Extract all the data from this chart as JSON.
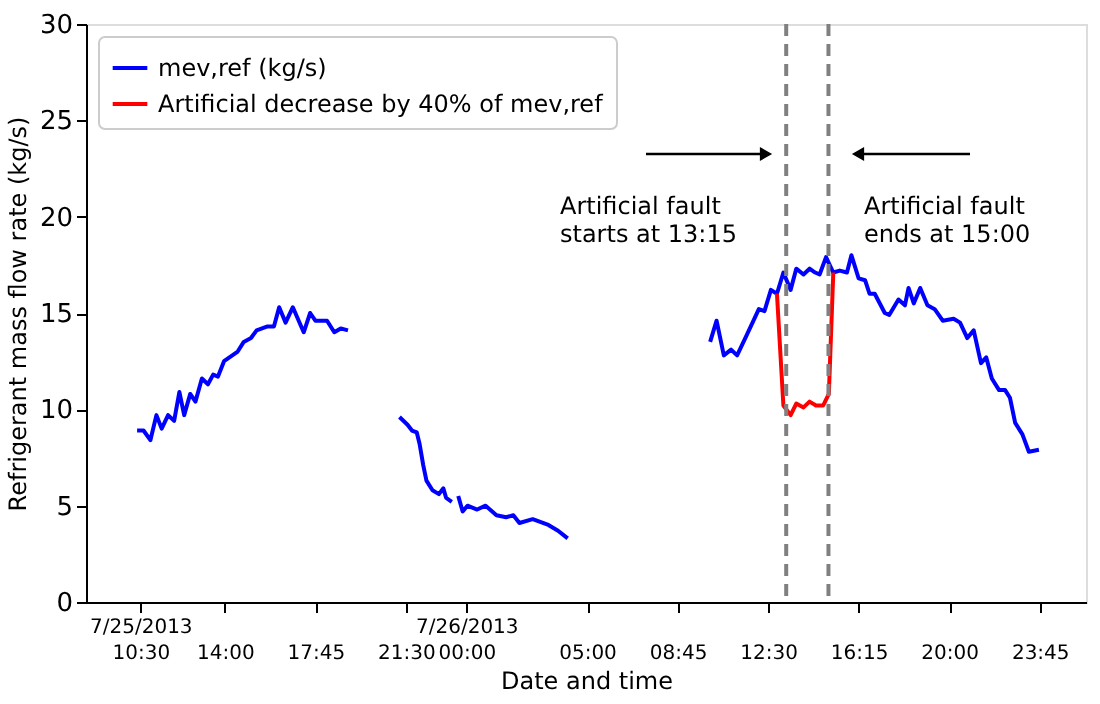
{
  "chart_data": {
    "type": "line",
    "xlabel": "Date and time",
    "ylabel": "Refrigerant mass flow rate (kg/s)",
    "xlim": [
      "2013-07-25T08:15",
      "2013-07-27T01:40"
    ],
    "ylim": [
      0,
      30
    ],
    "xticks": [
      {
        "value": "2013-07-25T10:30",
        "label": "7/25/2013\n10:30"
      },
      {
        "value": "2013-07-25T14:00",
        "label": "14:00"
      },
      {
        "value": "2013-07-25T17:45",
        "label": "17:45"
      },
      {
        "value": "2013-07-25T21:30",
        "label": "21:30"
      },
      {
        "value": "2013-07-26T00:00",
        "label": "7/26/2013\n00:00"
      },
      {
        "value": "2013-07-26T05:00",
        "label": "05:00"
      },
      {
        "value": "2013-07-26T08:45",
        "label": "08:45"
      },
      {
        "value": "2013-07-26T12:30",
        "label": "12:30"
      },
      {
        "value": "2013-07-26T16:15",
        "label": "16:15"
      },
      {
        "value": "2013-07-26T20:00",
        "label": "20:00"
      },
      {
        "value": "2013-07-26T23:45",
        "label": "23:45"
      }
    ],
    "yticks": [
      0,
      5,
      10,
      15,
      20,
      25,
      30
    ],
    "grid": false,
    "legend": "top left",
    "line_style": "solid",
    "marker": "none",
    "series": [
      {
        "name": "mev,ref (kg/s)",
        "color": "#0000ff",
        "x": [
          "2013-07-25T10:22",
          "2013-07-25T10:38",
          "2013-07-25T10:55",
          "2013-07-25T11:10",
          "2013-07-25T11:23",
          "2013-07-25T11:39",
          "2013-07-25T11:54",
          "2013-07-25T12:07",
          "2013-07-25T12:19",
          "2013-07-25T12:34",
          "2013-07-25T12:47",
          "2013-07-25T13:03",
          "2013-07-25T13:18",
          "2013-07-25T13:31",
          "2013-07-25T13:43",
          "2013-07-25T13:58",
          "2013-07-25T14:32",
          "2013-07-25T14:47",
          "2013-07-25T15:05",
          "2013-07-25T15:19",
          "2013-07-25T15:46",
          "2013-07-25T16:02",
          "2013-07-25T16:15",
          "2013-07-25T16:31",
          "2013-07-25T16:49",
          "2013-07-25T17:16",
          "2013-07-25T17:32",
          "2013-07-25T17:45",
          "2013-07-25T18:14",
          "2013-07-25T18:32",
          "2013-07-25T18:48",
          "2013-07-25T19:06",
          "2013-07-25T20:00",
          "2013-07-25T21:14",
          "2013-07-25T21:34",
          "2013-07-25T21:45",
          "2013-07-25T21:57",
          "2013-07-25T22:04",
          "2013-07-25T22:13",
          "2013-07-25T22:21",
          "2013-07-25T22:36",
          "2013-07-25T22:52",
          "2013-07-25T23:03",
          "2013-07-25T23:10",
          "2013-07-25T23:24",
          "2013-07-25T23:31",
          "2013-07-25T23:40",
          "2013-07-25T23:51",
          "2013-07-26T00:03",
          "2013-07-26T00:27",
          "2013-07-26T00:48",
          "2013-07-26T01:15",
          "2013-07-26T01:39",
          "2013-07-26T01:57",
          "2013-07-26T02:12",
          "2013-07-26T02:45",
          "2013-07-26T03:24",
          "2013-07-26T03:48",
          "2013-07-26T04:12",
          "2013-07-26T06:52",
          "2013-07-26T10:06",
          "2013-07-26T10:22",
          "2013-07-26T10:40",
          "2013-07-26T10:58",
          "2013-07-26T11:13",
          "2013-07-26T11:38",
          "2013-07-26T12:07",
          "2013-07-26T12:21",
          "2013-07-26T12:37",
          "2013-07-26T12:52",
          "2013-07-26T13:08",
          "2013-07-26T13:26",
          "2013-07-26T13:40",
          "2013-07-26T13:58",
          "2013-07-26T14:13",
          "2013-07-26T14:27",
          "2013-07-26T14:38",
          "2013-07-26T14:54",
          "2013-07-26T15:12",
          "2013-07-26T15:28",
          "2013-07-26T15:46",
          "2013-07-26T15:57",
          "2013-07-26T16:15",
          "2013-07-26T16:31",
          "2013-07-26T16:42",
          "2013-07-26T16:55",
          "2013-07-26T17:20",
          "2013-07-26T17:31",
          "2013-07-26T17:54",
          "2013-07-26T18:10",
          "2013-07-26T18:19",
          "2013-07-26T18:32",
          "2013-07-26T18:48",
          "2013-07-26T19:06",
          "2013-07-26T19:24",
          "2013-07-26T19:44",
          "2013-07-26T20:11",
          "2013-07-26T20:27",
          "2013-07-26T20:45",
          "2013-07-26T21:01",
          "2013-07-26T21:19",
          "2013-07-26T21:32",
          "2013-07-26T21:46",
          "2013-07-26T22:04",
          "2013-07-26T22:19",
          "2013-07-26T22:31",
          "2013-07-26T22:44",
          "2013-07-26T23:02",
          "2013-07-26T23:18",
          "2013-07-26T23:43"
        ],
        "values": [
          8.9,
          8.9,
          8.4,
          9.7,
          9.0,
          9.7,
          9.4,
          10.9,
          9.7,
          10.8,
          10.4,
          11.6,
          11.3,
          11.8,
          11.7,
          12.5,
          13.0,
          13.5,
          13.7,
          14.1,
          14.3,
          14.3,
          15.3,
          14.5,
          15.3,
          14.0,
          15.0,
          14.6,
          14.6,
          14.0,
          14.2,
          14.1,
          null,
          9.6,
          9.2,
          8.9,
          8.8,
          8.2,
          7.1,
          6.3,
          5.8,
          5.6,
          5.9,
          5.4,
          5.2,
          null,
          5.5,
          4.7,
          5.0,
          4.8,
          5.0,
          4.5,
          4.4,
          4.5,
          4.1,
          4.3,
          4.0,
          3.7,
          3.3,
          null,
          13.5,
          14.6,
          12.8,
          13.1,
          12.8,
          13.9,
          15.2,
          15.1,
          16.2,
          16.0,
          17.1,
          16.2,
          17.3,
          17.0,
          17.3,
          17.1,
          17.0,
          17.9,
          17.1,
          17.2,
          17.1,
          18.0,
          16.8,
          16.7,
          16.0,
          16.0,
          15.0,
          14.9,
          15.7,
          15.4,
          16.3,
          15.5,
          16.3,
          15.4,
          15.2,
          14.6,
          14.7,
          14.5,
          13.7,
          14.1,
          12.4,
          12.7,
          11.6,
          11.0,
          11.0,
          10.6,
          9.3,
          8.7,
          7.8,
          7.9
        ]
      },
      {
        "name": "Artificial decrease by 40% of mev,ref",
        "color": "#ff0000",
        "x": [
          "2013-07-26T12:52",
          "2013-07-26T13:08",
          "2013-07-26T13:26",
          "2013-07-26T13:40",
          "2013-07-26T13:58",
          "2013-07-26T14:13",
          "2013-07-26T14:29",
          "2013-07-26T14:47",
          "2013-07-26T15:01",
          "2013-07-26T15:12"
        ],
        "values": [
          16.0,
          10.2,
          9.7,
          10.3,
          10.1,
          10.4,
          10.2,
          10.2,
          10.8,
          17.1
        ]
      }
    ],
    "ref_lines": [
      {
        "axis": "x",
        "value": "2013-07-26T13:15",
        "color": "#808080",
        "line_style": "dashed"
      },
      {
        "axis": "x",
        "value": "2013-07-26T15:00",
        "color": "#808080",
        "line_style": "dashed"
      }
    ],
    "annotations": [
      "Artificial fault\nstarts at 13:15",
      "Artificial fault\nends at 15:00"
    ]
  }
}
